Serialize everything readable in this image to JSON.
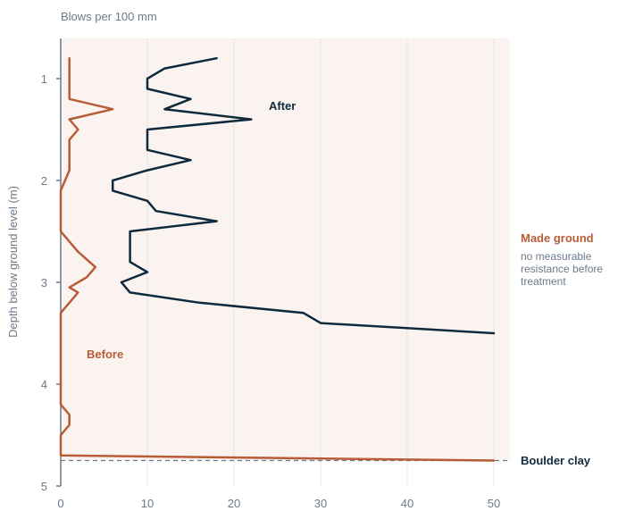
{
  "chart_data": {
    "type": "line",
    "xlabel": "Blows per 100 mm",
    "ylabel": "Depth below ground level (m)",
    "xlim": [
      0,
      52
    ],
    "ylim": [
      0.6,
      5
    ],
    "y_inverted": true,
    "x_ticks": [
      0,
      10,
      20,
      30,
      40,
      50
    ],
    "y_ticks": [
      1,
      2,
      3,
      4,
      5
    ],
    "grid": "vertical",
    "shaded_zone": {
      "color": "#fbf3f0",
      "depth_to": 4.75
    },
    "colors": {
      "before": "#b85c38",
      "after": "#0f2a3d",
      "axis": "#6b7a8a",
      "grid": "#e6e6e6"
    },
    "series": [
      {
        "name": "Before",
        "color": "#b85c38",
        "points": [
          [
            1,
            0.8
          ],
          [
            1,
            1.2
          ],
          [
            6,
            1.3
          ],
          [
            1,
            1.4
          ],
          [
            2,
            1.5
          ],
          [
            1,
            1.6
          ],
          [
            1,
            1.9
          ],
          [
            0,
            2.1
          ],
          [
            0,
            2.5
          ],
          [
            2,
            2.7
          ],
          [
            4,
            2.85
          ],
          [
            3,
            2.95
          ],
          [
            1,
            3.05
          ],
          [
            2,
            3.1
          ],
          [
            0,
            3.3
          ],
          [
            0,
            4.2
          ],
          [
            1,
            4.3
          ],
          [
            1,
            4.4
          ],
          [
            0,
            4.5
          ],
          [
            0,
            4.7
          ],
          [
            50,
            4.75
          ]
        ]
      },
      {
        "name": "After",
        "color": "#0f2a3d",
        "points": [
          [
            18,
            0.8
          ],
          [
            12,
            0.9
          ],
          [
            10,
            1.0
          ],
          [
            10,
            1.1
          ],
          [
            15,
            1.2
          ],
          [
            12,
            1.3
          ],
          [
            22,
            1.4
          ],
          [
            10,
            1.5
          ],
          [
            10,
            1.7
          ],
          [
            15,
            1.8
          ],
          [
            10,
            1.9
          ],
          [
            6,
            2.0
          ],
          [
            6,
            2.1
          ],
          [
            10,
            2.2
          ],
          [
            11,
            2.3
          ],
          [
            18,
            2.4
          ],
          [
            8,
            2.5
          ],
          [
            8,
            2.8
          ],
          [
            10,
            2.9
          ],
          [
            7,
            3.0
          ],
          [
            8,
            3.1
          ],
          [
            16,
            3.2
          ],
          [
            28,
            3.3
          ],
          [
            30,
            3.4
          ],
          [
            50,
            3.5
          ]
        ]
      }
    ],
    "reference_line": {
      "depth": 4.75,
      "label": "Boulder clay"
    },
    "annotations": {
      "after": "After",
      "before": "Before",
      "made_ground_title": "Made ground",
      "made_ground_note_lines": [
        "no measurable",
        "resistance before",
        "treatment"
      ],
      "boulder_clay": "Boulder clay"
    }
  }
}
